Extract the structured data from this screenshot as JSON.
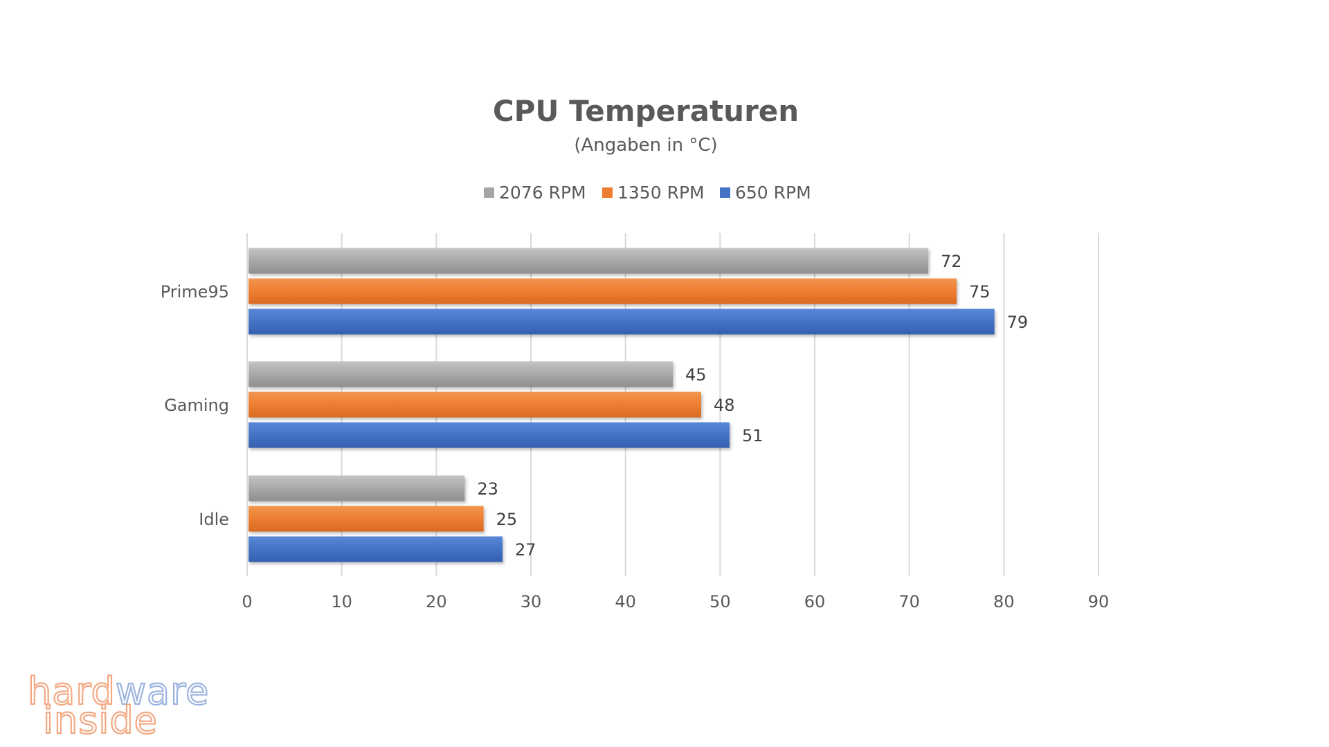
{
  "chart_data": {
    "type": "bar",
    "orientation": "horizontal",
    "title": "CPU Temperaturen",
    "subtitle": "(Angaben in °C)",
    "categories": [
      "Prime95",
      "Gaming",
      "Idle"
    ],
    "series": [
      {
        "name": "2076 RPM",
        "color": "#a5a5a5",
        "values": [
          72,
          45,
          23
        ]
      },
      {
        "name": "1350 RPM",
        "color": "#ed7d31",
        "values": [
          75,
          48,
          25
        ]
      },
      {
        "name": "650 RPM",
        "color": "#4472c4",
        "values": [
          79,
          51,
          27
        ]
      }
    ],
    "xlim": [
      0,
      90
    ],
    "xticks": [
      0,
      10,
      20,
      30,
      40,
      50,
      60,
      70,
      80,
      90
    ],
    "grid": true,
    "legend_position": "top-center",
    "data_labels": true
  },
  "watermark": {
    "line1": "hardware",
    "line2": "inside"
  }
}
